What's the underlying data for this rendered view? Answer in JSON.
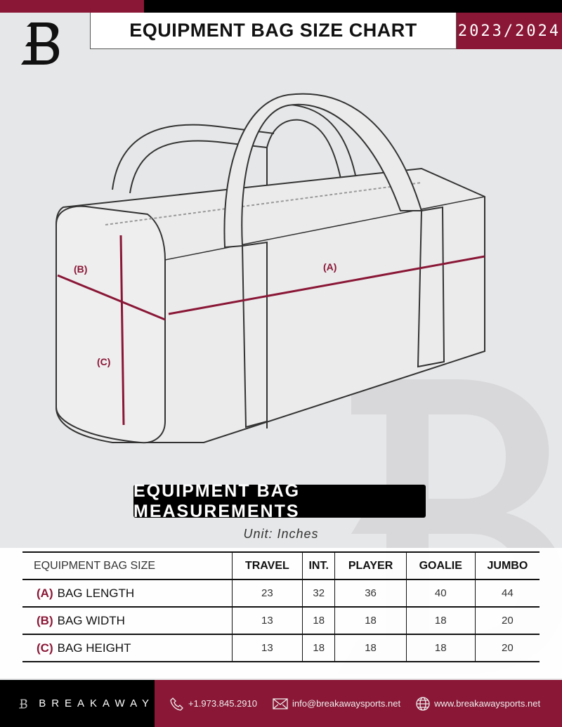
{
  "header": {
    "title": "EQUIPMENT BAG SIZE CHART",
    "season": "2023/2024",
    "logo_letter": "B"
  },
  "colors": {
    "accent": "#8a1736",
    "dark": "#000000",
    "background": "#e6e7e8"
  },
  "diagram": {
    "labels": [
      "(A)",
      "(B)",
      "(C)"
    ]
  },
  "section_title": "EQUIPMENT BAG MEASUREMENTS",
  "unit": "Unit: Inches",
  "table": {
    "headers": [
      "EQUIPMENT BAG SIZE",
      "TRAVEL",
      "INT.",
      "PLAYER",
      "GOALIE",
      "JUMBO"
    ],
    "rows": [
      {
        "letter": "(A)",
        "label": "BAG LENGTH",
        "values": [
          "23",
          "32",
          "36",
          "40",
          "44"
        ]
      },
      {
        "letter": "(B)",
        "label": "BAG WIDTH",
        "values": [
          "13",
          "18",
          "18",
          "18",
          "20"
        ]
      },
      {
        "letter": "(C)",
        "label": "BAG HEIGHT",
        "values": [
          "13",
          "18",
          "18",
          "18",
          "20"
        ]
      }
    ]
  },
  "footer": {
    "brand": "BREAKAWAY",
    "phone": "+1.973.845.2910",
    "email": "info@breakawaysports.net",
    "website": "www.breakawaysports.net",
    "icons": [
      "phone-icon",
      "mail-icon",
      "globe-icon"
    ]
  }
}
